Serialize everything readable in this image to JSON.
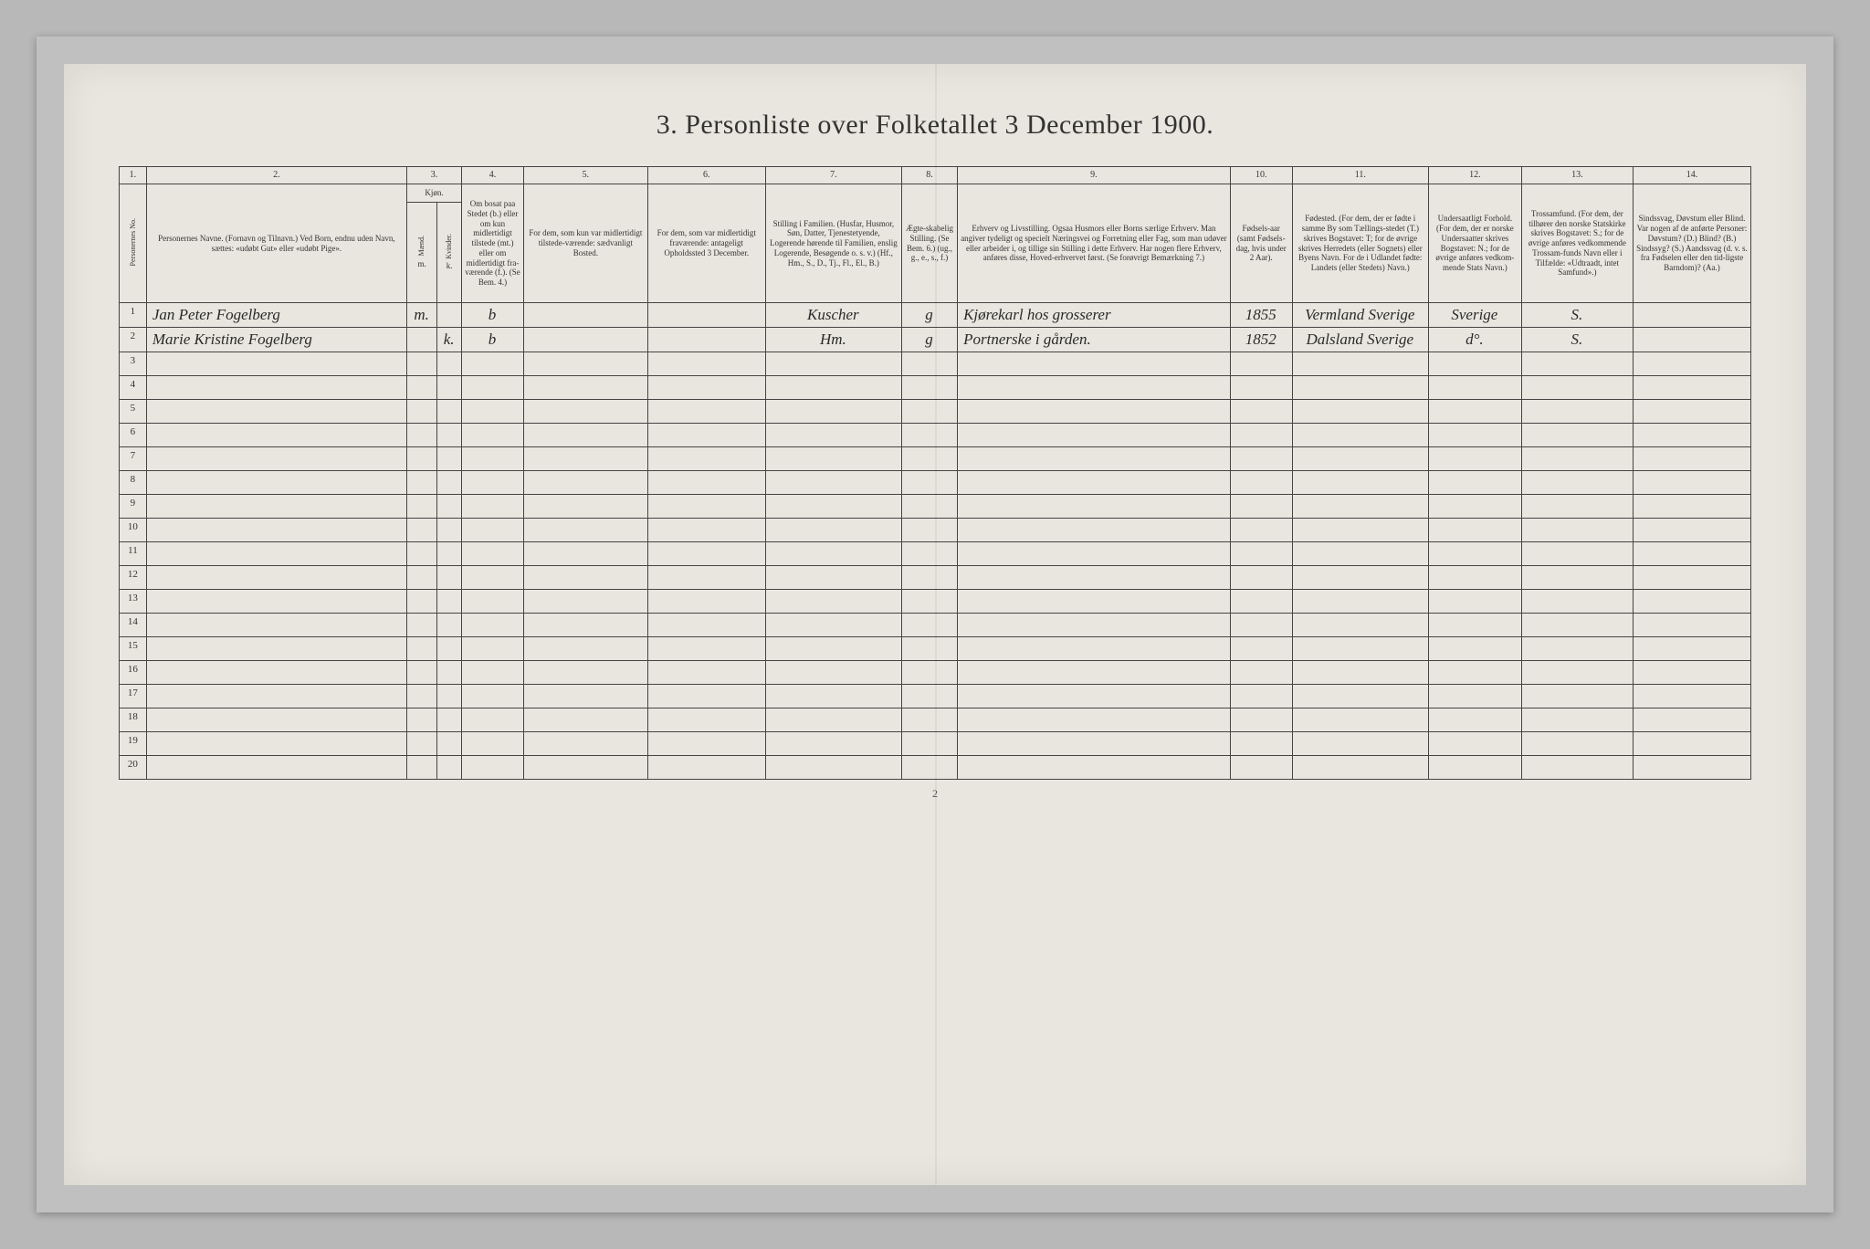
{
  "title": "3. Personliste over Folketallet 3 December 1900.",
  "page_number": "2",
  "colors": {
    "background": "#b8b8b8",
    "paper": "#e8e6de",
    "border": "#444",
    "text": "#333",
    "handwriting": "#2a2a2a"
  },
  "column_numbers": [
    "1.",
    "2.",
    "3.",
    "4.",
    "5.",
    "6.",
    "7.",
    "8.",
    "9.",
    "10.",
    "11.",
    "12.",
    "13.",
    "14."
  ],
  "headers": {
    "rownum": "Personernes No.",
    "c2": "Personernes Navne.\n(Fornavn og Tilnavn.)\nVed Born, endnu uden Navn, sættes: «udøbt Gut» eller «udøbt Pige».",
    "c3_top": "Kjøn.",
    "c3a": "Mænd.",
    "c3b": "Kvinder.",
    "c3_sub": "m.   k.",
    "c4": "Om bosat paa Stedet (b.) eller om kun midlertidigt tilstede (mt.) eller om midlertidigt fra-værende (f.). (Se Bem. 4.)",
    "c5": "For dem, som kun var midlertidigt tilstede-værende:\nsædvanligt Bosted.",
    "c6": "For dem, som var midlertidigt fraværende:\nantageligt Opholdssted 3 December.",
    "c7": "Stilling i Familien.\n(Husfar, Husmor, Søn, Datter, Tjenestetyende, Logerende hørende til Familien, enslig Logerende, Besøgende o. s. v.)\n(Hf., Hm., S., D., Tj., Fl., El., B.)",
    "c8": "Ægte-skabelig Stilling.\n(Se Bem. 6.)\n(ug., g., e., s., f.)",
    "c9": "Erhverv og Livsstilling.\nOgsaa Husmors eller Borns særlige Erhverv. Man angiver tydeligt og specielt Næringsvei og Forretning eller Fag, som man udøver eller arbeider i, og tillige sin Stilling i dette Erhverv. Har nogen flere Erhverv, anføres disse, Hoved-erhvervet først.\n(Se forøvrigt Bemærkning 7.)",
    "c10": "Fødsels-aar\n(samt Fødsels-dag, hvis under 2 Aar).",
    "c11": "Fødested.\n(For dem, der er fødte i samme By som Tællings-stedet (T.) skrives Bogstavet: T; for de øvrige skrives Herredets (eller Sognets) eller Byens Navn. For de i Udlandet fødte: Landets (eller Stedets) Navn.)",
    "c12": "Undersaatligt Forhold.\n(For dem, der er norske Undersaatter skrives Bogstavet: N.; for de øvrige anføres vedkom-mende Stats Navn.)",
    "c13": "Trossamfund.\n(For dem, der tilhører den norske Statskirke skrives Bogstavet: S.; for de øvrige anføres vedkommende Trossam-funds Navn eller i Tilfælde: «Udtraadt, intet Samfund».)",
    "c14": "Sindssvag, Døvstum eller Blind.\nVar nogen af de anførte Personer: Døvstum? (D.) Blind? (B.) Sindssyg? (S.) Aandssvag (d. v. s. fra Fødselen eller den tid-ligste Barndom)? (Aa.)"
  },
  "rows": [
    {
      "num": "1",
      "name": "Jan Peter Fogelberg",
      "m": "m.",
      "k": "",
      "bosat": "b",
      "c5": "",
      "c6": "",
      "stilling": "Kuscher",
      "egteskab": "g",
      "erhverv": "Kjørekarl hos grosserer",
      "fodselsaar": "1855",
      "fodested": "Vermland Sverige",
      "undersaat": "Sverige",
      "tros": "S.",
      "c14": ""
    },
    {
      "num": "2",
      "name": "Marie Kristine Fogelberg",
      "m": "",
      "k": "k.",
      "bosat": "b",
      "c5": "",
      "c6": "",
      "stilling": "Hm.",
      "egteskab": "g",
      "erhverv": "Portnerske i gården.",
      "fodselsaar": "1852",
      "fodested": "Dalsland Sverige",
      "undersaat": "d°.",
      "tros": "S.",
      "c14": ""
    }
  ],
  "total_rows": 20
}
